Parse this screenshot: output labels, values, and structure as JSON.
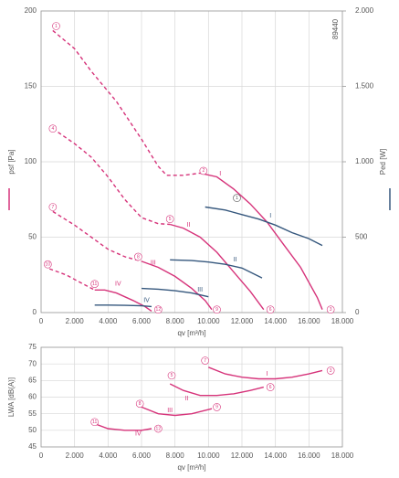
{
  "chart_data": [
    {
      "type": "line",
      "id_text": "89440",
      "xlabel": "qv [m³/h]",
      "ylabel": "psf [Pa]",
      "y2label": "Ped [W]",
      "xlim": [
        0,
        18000
      ],
      "xticks": [
        0,
        {
          "value": 2000,
          "label": "2.000"
        },
        {
          "value": 4000,
          "label": "4.000"
        },
        {
          "value": 6000,
          "label": "6.000"
        },
        {
          "value": 8000,
          "label": "8.000"
        },
        {
          "value": 10000,
          "label": "10.000"
        },
        {
          "value": 12000,
          "label": "12.000"
        },
        {
          "value": 14000,
          "label": "14.000"
        },
        {
          "value": 16000,
          "label": "16.000"
        },
        {
          "value": 18000,
          "label": "18.000"
        }
      ],
      "ylim": [
        0,
        200
      ],
      "yticks": [
        0,
        50,
        100,
        150,
        200
      ],
      "y2lim": [
        0,
        2000
      ],
      "y2ticks": [
        0,
        500,
        {
          "value": 1000,
          "label": "1.000"
        },
        {
          "value": 1500,
          "label": "1.500"
        },
        {
          "value": 2000,
          "label": "2.000"
        }
      ],
      "grid": true,
      "series": [
        {
          "color": "#d6337a",
          "line_style": "dashed",
          "x": [
            700,
            2000,
            3000,
            4500,
            6000,
            7000,
            7500,
            8500,
            9500
          ],
          "values": [
            187,
            175,
            160,
            140,
            115,
            97,
            91,
            91,
            92.5
          ]
        },
        {
          "name": "I",
          "color": "#d6337a",
          "x": [
            9500,
            10500,
            11500,
            12500,
            13500,
            14500,
            15500,
            16500,
            16800
          ],
          "values": [
            92.5,
            90,
            82,
            72,
            60,
            45,
            30,
            10,
            2
          ]
        },
        {
          "color": "#d6337a",
          "line_style": "dashed",
          "x": [
            700,
            2000,
            3000,
            4000,
            5000,
            6000,
            7000,
            7700
          ],
          "values": [
            122,
            112,
            103,
            90,
            75,
            63,
            59,
            58.5
          ]
        },
        {
          "name": "II",
          "color": "#d6337a",
          "x": [
            7700,
            8500,
            9500,
            10500,
            11500,
            12500,
            13300
          ],
          "values": [
            58.5,
            56,
            50,
            40,
            27,
            14,
            2
          ]
        },
        {
          "color": "#d6337a",
          "line_style": "dashed",
          "x": [
            700,
            2000,
            3000,
            4000,
            5000,
            6000
          ],
          "values": [
            67,
            58,
            50,
            42,
            37,
            34
          ]
        },
        {
          "name": "III",
          "color": "#d6337a",
          "x": [
            6000,
            7000,
            8000,
            9000,
            9800,
            10200
          ],
          "values": [
            34,
            30,
            24,
            16,
            8,
            2
          ]
        },
        {
          "color": "#d6337a",
          "line_style": "dashed",
          "x": [
            500,
            1500,
            2500,
            3200
          ],
          "values": [
            29,
            25,
            19,
            15
          ]
        },
        {
          "name": "IV",
          "color": "#d6337a",
          "x": [
            3200,
            3800,
            4500,
            5500,
            6200,
            6600
          ],
          "values": [
            15,
            15,
            13,
            8,
            4,
            1
          ]
        },
        {
          "name": "I",
          "color": "#35577d",
          "axis": "y2",
          "x": [
            9800,
            11000,
            12000,
            13000,
            14000,
            15000,
            16000,
            16800
          ],
          "values": [
            700,
            680,
            650,
            620,
            580,
            530,
            490,
            445
          ]
        },
        {
          "name": "II",
          "color": "#35577d",
          "axis": "y2",
          "x": [
            7700,
            9000,
            10000,
            11000,
            12000,
            13200
          ],
          "values": [
            350,
            345,
            335,
            320,
            295,
            230
          ]
        },
        {
          "name": "III",
          "color": "#35577d",
          "axis": "y2",
          "x": [
            6000,
            7000,
            8000,
            9000,
            10000
          ],
          "values": [
            160,
            155,
            145,
            130,
            105
          ]
        },
        {
          "name": "IV",
          "color": "#35577d",
          "axis": "y2",
          "x": [
            3200,
            4000,
            5000,
            6000,
            6600
          ],
          "values": [
            50,
            50,
            48,
            45,
            40
          ]
        }
      ],
      "annotations": [
        {
          "text": "1",
          "x": 900,
          "y": 190,
          "circled": true,
          "color": "#d6337a"
        },
        {
          "text": "4",
          "x": 700,
          "y": 122,
          "circled": true,
          "color": "#d6337a"
        },
        {
          "text": "7",
          "x": 700,
          "y": 70,
          "circled": true,
          "color": "#d6337a"
        },
        {
          "text": "10",
          "x": 400,
          "y": 32,
          "circled": true,
          "color": "#d6337a"
        },
        {
          "text": "2",
          "x": 9700,
          "y": 94,
          "circled": true,
          "color": "#d6337a"
        },
        {
          "text": "3",
          "x": 17300,
          "y": 2,
          "circled": true,
          "color": "#d6337a"
        },
        {
          "text": "5",
          "x": 7700,
          "y": 62,
          "circled": true,
          "color": "#d6337a"
        },
        {
          "text": "6",
          "x": 13700,
          "y": 2,
          "circled": true,
          "color": "#d6337a"
        },
        {
          "text": "8",
          "x": 5800,
          "y": 37,
          "circled": true,
          "color": "#d6337a"
        },
        {
          "text": "9",
          "x": 10500,
          "y": 2,
          "circled": true,
          "color": "#d6337a"
        },
        {
          "text": "11",
          "x": 3200,
          "y": 19,
          "circled": true,
          "color": "#d6337a"
        },
        {
          "text": "12",
          "x": 7000,
          "y": 2,
          "circled": true,
          "color": "#d6337a"
        },
        {
          "text": "1",
          "x": 11700,
          "y": 76,
          "circled": true,
          "color": "#555555"
        },
        {
          "text": "I",
          "x": 10700,
          "y": 92,
          "color": "#d6337a"
        },
        {
          "text": "II",
          "x": 8800,
          "y": 58,
          "color": "#d6337a"
        },
        {
          "text": "III",
          "x": 6700,
          "y": 33,
          "color": "#d6337a"
        },
        {
          "text": "IV",
          "x": 4600,
          "y": 19,
          "color": "#d6337a"
        },
        {
          "text": "I",
          "x": 13700,
          "y": 64,
          "color": "#35577d"
        },
        {
          "text": "II",
          "x": 11600,
          "y": 35,
          "color": "#35577d"
        },
        {
          "text": "III",
          "x": 9500,
          "y": 15,
          "color": "#35577d"
        },
        {
          "text": "IV",
          "x": 6300,
          "y": 8,
          "color": "#35577d"
        }
      ]
    },
    {
      "type": "line",
      "xlabel": "qv [m³/h]",
      "ylabel": "LWA [dB(A)]",
      "xlim": [
        0,
        18000
      ],
      "xticks": [
        0,
        {
          "value": 2000,
          "label": "2.000"
        },
        {
          "value": 4000,
          "label": "4.000"
        },
        {
          "value": 6000,
          "label": "6.000"
        },
        {
          "value": 8000,
          "label": "8.000"
        },
        {
          "value": 10000,
          "label": "10.000"
        },
        {
          "value": 12000,
          "label": "12.000"
        },
        {
          "value": 14000,
          "label": "14.000"
        },
        {
          "value": 16000,
          "label": "16.000"
        },
        {
          "value": 18000,
          "label": "18.000"
        }
      ],
      "ylim": [
        45,
        75
      ],
      "yticks": [
        45,
        50,
        55,
        60,
        65,
        70,
        75
      ],
      "grid": true,
      "series": [
        {
          "name": "I",
          "color": "#d6337a",
          "x": [
            10000,
            11000,
            12000,
            13000,
            14000,
            15000,
            16000,
            16800
          ],
          "values": [
            69,
            67,
            66,
            65.5,
            65.5,
            66,
            67,
            68
          ]
        },
        {
          "name": "II",
          "color": "#d6337a",
          "x": [
            7700,
            8500,
            9500,
            10500,
            11500,
            12500,
            13300
          ],
          "values": [
            64,
            62,
            60.5,
            60.5,
            61,
            62,
            63
          ]
        },
        {
          "name": "III",
          "color": "#d6337a",
          "x": [
            6000,
            7000,
            8000,
            9000,
            10200
          ],
          "values": [
            57,
            55,
            54.5,
            55,
            56.5
          ]
        },
        {
          "name": "IV",
          "color": "#d6337a",
          "x": [
            3200,
            4000,
            5000,
            6000,
            6600
          ],
          "values": [
            52,
            50.5,
            50,
            50,
            50.5
          ]
        }
      ],
      "annotations": [
        {
          "text": "7",
          "x": 9800,
          "y": 71,
          "circled": true,
          "color": "#d6337a"
        },
        {
          "text": "3",
          "x": 17300,
          "y": 68,
          "circled": true,
          "color": "#d6337a"
        },
        {
          "text": "5",
          "x": 7800,
          "y": 66.5,
          "circled": true,
          "color": "#d6337a"
        },
        {
          "text": "6",
          "x": 13700,
          "y": 63,
          "circled": true,
          "color": "#d6337a"
        },
        {
          "text": "8",
          "x": 5900,
          "y": 58,
          "circled": true,
          "color": "#d6337a"
        },
        {
          "text": "9",
          "x": 10500,
          "y": 57,
          "circled": true,
          "color": "#d6337a"
        },
        {
          "text": "11",
          "x": 3200,
          "y": 52.5,
          "circled": true,
          "color": "#d6337a"
        },
        {
          "text": "12",
          "x": 7000,
          "y": 50.5,
          "circled": true,
          "color": "#d6337a"
        },
        {
          "text": "I",
          "x": 13500,
          "y": 67,
          "color": "#d6337a"
        },
        {
          "text": "II",
          "x": 8700,
          "y": 59.5,
          "color": "#d6337a"
        },
        {
          "text": "III",
          "x": 7700,
          "y": 56,
          "color": "#d6337a"
        },
        {
          "text": "IV",
          "x": 5800,
          "y": 49,
          "color": "#d6337a"
        }
      ]
    }
  ]
}
